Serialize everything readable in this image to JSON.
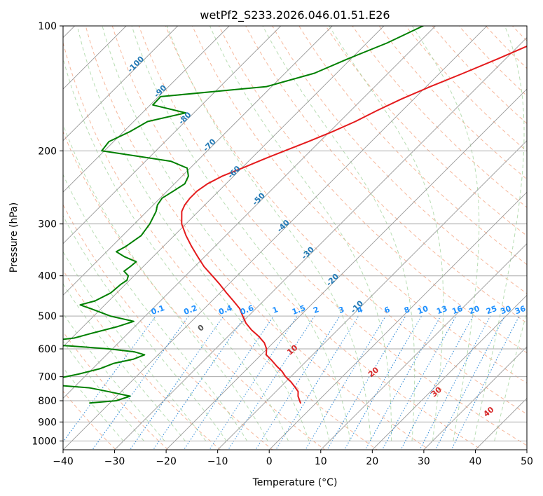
{
  "chart_data": {
    "type": "line",
    "title": "wetPf2_S233.2026.046.01.51.E26",
    "xlabel": "Temperature (°C)",
    "ylabel": "Pressure (hPa)",
    "xlim": [
      -40,
      50
    ],
    "ylim": [
      1050,
      100
    ],
    "y_scale": "log",
    "x_ticks": [
      -40,
      -30,
      -20,
      -10,
      0,
      10,
      20,
      30,
      40,
      50
    ],
    "y_ticks": [
      100,
      200,
      300,
      400,
      500,
      600,
      700,
      800,
      900,
      1000
    ],
    "grid": true,
    "colors": {
      "temperature": "#e41a1c",
      "dewpoint": "#008000",
      "isotherm_label": "#1f77b4",
      "mixing_label": "#1e90ff",
      "moist_label": "#d62728",
      "dry_label": "#555555"
    },
    "isotherm_labels": [
      {
        "value": -100,
        "text": "-100"
      },
      {
        "value": -90,
        "text": "-90"
      },
      {
        "value": -80,
        "text": "-80"
      },
      {
        "value": -70,
        "text": "-70"
      },
      {
        "value": -60,
        "text": "-60"
      },
      {
        "value": -50,
        "text": "-50"
      },
      {
        "value": -40,
        "text": "-40"
      },
      {
        "value": -30,
        "text": "-30"
      },
      {
        "value": -20,
        "text": "-20"
      },
      {
        "value": -10,
        "text": "-10"
      }
    ],
    "mixing_ratio_labels": [
      {
        "value": 0.1,
        "text": "0.1"
      },
      {
        "value": 0.2,
        "text": "0.2"
      },
      {
        "value": 0.4,
        "text": "0.4"
      },
      {
        "value": 0.6,
        "text": "0.6"
      },
      {
        "value": 1,
        "text": "1"
      },
      {
        "value": 1.5,
        "text": "1.5"
      },
      {
        "value": 2,
        "text": "2"
      },
      {
        "value": 3,
        "text": "3"
      },
      {
        "value": 4,
        "text": "4"
      },
      {
        "value": 6,
        "text": "6"
      },
      {
        "value": 8,
        "text": "8"
      },
      {
        "value": 10,
        "text": "10"
      },
      {
        "value": 13,
        "text": "13"
      },
      {
        "value": 16,
        "text": "16"
      },
      {
        "value": 20,
        "text": "20"
      },
      {
        "value": 25,
        "text": "25"
      },
      {
        "value": 30,
        "text": "30"
      },
      {
        "value": 36,
        "text": "36"
      }
    ],
    "moist_adiabat_labels": [
      {
        "value": 0,
        "text": "0"
      },
      {
        "value": 10,
        "text": "10"
      },
      {
        "value": 20,
        "text": "20"
      },
      {
        "value": 30,
        "text": "30"
      },
      {
        "value": 40,
        "text": "40"
      }
    ],
    "series": [
      {
        "name": "Temperature",
        "color": "#e41a1c",
        "points": [
          {
            "p": 100,
            "t": -24.6
          },
          {
            "p": 110,
            "t": -27.5
          },
          {
            "p": 120,
            "t": -31.5
          },
          {
            "p": 130,
            "t": -35.4
          },
          {
            "p": 140,
            "t": -39.2
          },
          {
            "p": 150,
            "t": -42.4
          },
          {
            "p": 160,
            "t": -44.9
          },
          {
            "p": 170,
            "t": -47.0
          },
          {
            "p": 180,
            "t": -49.5
          },
          {
            "p": 190,
            "t": -52.2
          },
          {
            "p": 200,
            "t": -55.0
          },
          {
            "p": 210,
            "t": -57.6
          },
          {
            "p": 220,
            "t": -59.9
          },
          {
            "p": 230,
            "t": -62.2
          },
          {
            "p": 240,
            "t": -63.6
          },
          {
            "p": 250,
            "t": -64.2
          },
          {
            "p": 260,
            "t": -64.2
          },
          {
            "p": 270,
            "t": -63.9
          },
          {
            "p": 280,
            "t": -63.2
          },
          {
            "p": 300,
            "t": -60.8
          },
          {
            "p": 320,
            "t": -57.7
          },
          {
            "p": 340,
            "t": -54.5
          },
          {
            "p": 360,
            "t": -51.3
          },
          {
            "p": 380,
            "t": -48.2
          },
          {
            "p": 400,
            "t": -44.8
          },
          {
            "p": 420,
            "t": -41.6
          },
          {
            "p": 440,
            "t": -38.7
          },
          {
            "p": 460,
            "t": -35.8
          },
          {
            "p": 480,
            "t": -33.1
          },
          {
            "p": 500,
            "t": -31.1
          },
          {
            "p": 520,
            "t": -29.1
          },
          {
            "p": 540,
            "t": -26.7
          },
          {
            "p": 560,
            "t": -24.0
          },
          {
            "p": 580,
            "t": -21.7
          },
          {
            "p": 600,
            "t": -20.1
          },
          {
            "p": 620,
            "t": -19.0
          },
          {
            "p": 640,
            "t": -16.8
          },
          {
            "p": 660,
            "t": -14.8
          },
          {
            "p": 680,
            "t": -12.7
          },
          {
            "p": 700,
            "t": -11.0
          },
          {
            "p": 720,
            "t": -9.0
          },
          {
            "p": 740,
            "t": -7.3
          },
          {
            "p": 760,
            "t": -5.7
          },
          {
            "p": 780,
            "t": -4.8
          },
          {
            "p": 800,
            "t": -3.6
          },
          {
            "p": 810,
            "t": -3.0
          }
        ]
      },
      {
        "name": "Dewpoint",
        "color": "#008000",
        "points": [
          {
            "p": 100,
            "t": -52.4
          },
          {
            "p": 110,
            "t": -56.1
          },
          {
            "p": 120,
            "t": -60.6
          },
          {
            "p": 130,
            "t": -64.3
          },
          {
            "p": 140,
            "t": -71.0
          },
          {
            "p": 148,
            "t": -89.6
          },
          {
            "p": 155,
            "t": -89.5
          },
          {
            "p": 162,
            "t": -81.6
          },
          {
            "p": 170,
            "t": -87.3
          },
          {
            "p": 180,
            "t": -88.8
          },
          {
            "p": 190,
            "t": -90.9
          },
          {
            "p": 200,
            "t": -90.5
          },
          {
            "p": 206,
            "t": -82.6
          },
          {
            "p": 212,
            "t": -75.0
          },
          {
            "p": 220,
            "t": -70.6
          },
          {
            "p": 230,
            "t": -68.8
          },
          {
            "p": 240,
            "t": -68.0
          },
          {
            "p": 250,
            "t": -68.8
          },
          {
            "p": 260,
            "t": -69.6
          },
          {
            "p": 270,
            "t": -69.2
          },
          {
            "p": 280,
            "t": -68.2
          },
          {
            "p": 300,
            "t": -67.0
          },
          {
            "p": 320,
            "t": -66.4
          },
          {
            "p": 340,
            "t": -67.3
          },
          {
            "p": 350,
            "t": -68.1
          },
          {
            "p": 360,
            "t": -65.5
          },
          {
            "p": 370,
            "t": -62.3
          },
          {
            "p": 380,
            "t": -62.5
          },
          {
            "p": 390,
            "t": -62.8
          },
          {
            "p": 400,
            "t": -61.1
          },
          {
            "p": 410,
            "t": -60.5
          },
          {
            "p": 420,
            "t": -60.9
          },
          {
            "p": 440,
            "t": -61.2
          },
          {
            "p": 460,
            "t": -62.7
          },
          {
            "p": 470,
            "t": -64.8
          },
          {
            "p": 480,
            "t": -62.0
          },
          {
            "p": 500,
            "t": -56.8
          },
          {
            "p": 515,
            "t": -51.2
          },
          {
            "p": 530,
            "t": -53.3
          },
          {
            "p": 550,
            "t": -57.0
          },
          {
            "p": 565,
            "t": -59.5
          },
          {
            "p": 575,
            "t": -64.1
          },
          {
            "p": 580,
            "t": -70.3
          },
          {
            "p": 590,
            "t": -59.0
          },
          {
            "p": 600,
            "t": -50.7
          },
          {
            "p": 610,
            "t": -45.1
          },
          {
            "p": 620,
            "t": -42.6
          },
          {
            "p": 635,
            "t": -43.9
          },
          {
            "p": 650,
            "t": -46.9
          },
          {
            "p": 670,
            "t": -48.6
          },
          {
            "p": 690,
            "t": -51.7
          },
          {
            "p": 710,
            "t": -55.5
          },
          {
            "p": 720,
            "t": -60.9
          },
          {
            "p": 730,
            "t": -56.3
          },
          {
            "p": 745,
            "t": -46.8
          },
          {
            "p": 760,
            "t": -42.6
          },
          {
            "p": 780,
            "t": -37.4
          },
          {
            "p": 800,
            "t": -39.2
          },
          {
            "p": 810,
            "t": -43.9
          }
        ]
      }
    ]
  }
}
